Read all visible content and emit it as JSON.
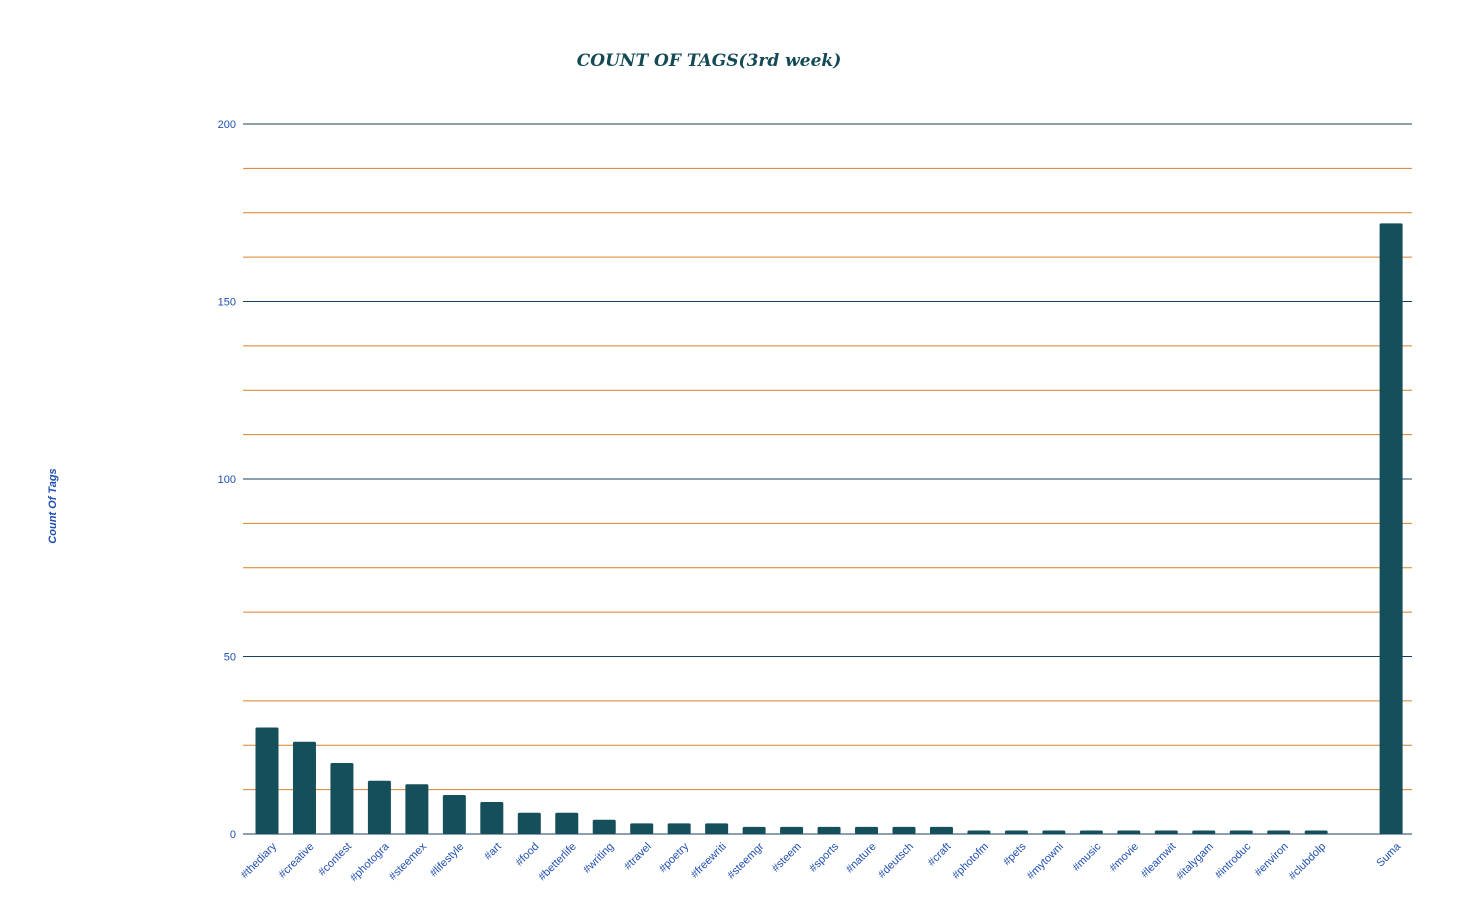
{
  "chart_data": {
    "type": "bar",
    "title": "COUNT OF TAGS(3rd week)",
    "xlabel": "",
    "ylabel": "Count Of Tags",
    "ylim": [
      0,
      200
    ],
    "yticks": [
      0,
      50,
      100,
      150,
      200
    ],
    "minor_gridlines_per_major": 3,
    "grid": true,
    "legend": "none",
    "categories": [
      "#thediary",
      "#creative",
      "#contest",
      "#photogra",
      "#steemex",
      "#lifestyle",
      "#art",
      "#food",
      "#betterlife",
      "#writing",
      "#travel",
      "#poetry",
      "#freewriti",
      "#steemgr",
      "#steem",
      "#sports",
      "#nature",
      "#deutsch",
      "#craft",
      "#photofm",
      "#pets",
      "#mytowni",
      "#music",
      "#movie",
      "#learnwit",
      "#italygam",
      "#introduc",
      "#environ",
      "#clubdolp",
      "Suma"
    ],
    "values": [
      30,
      26,
      20,
      15,
      14,
      11,
      9,
      6,
      6,
      4,
      3,
      3,
      3,
      2,
      2,
      2,
      2,
      2,
      2,
      1,
      1,
      1,
      1,
      1,
      1,
      1,
      1,
      1,
      1,
      172
    ],
    "colors": {
      "bar": "#164f5c",
      "major_grid": "#173f61",
      "minor_grid": "#d9812a",
      "axis_text": "#1f4fb0",
      "title": "#144a55"
    }
  }
}
